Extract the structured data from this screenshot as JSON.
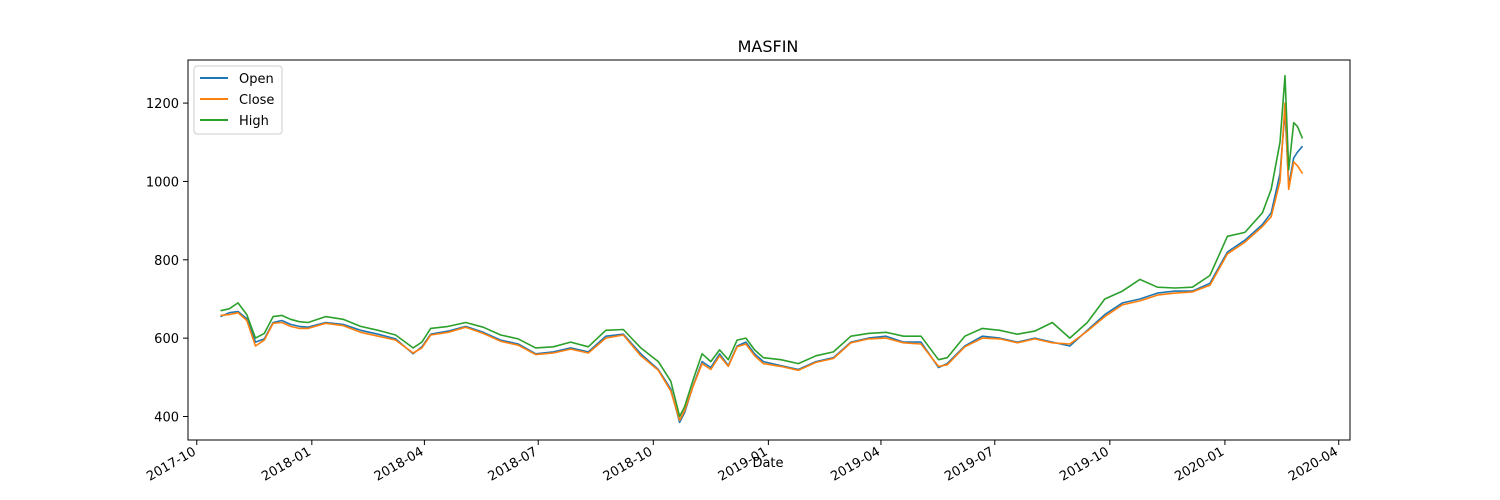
{
  "chart_data": {
    "type": "line",
    "title": "MASFIN",
    "xlabel": "Date",
    "ylabel": "",
    "x_axis": "date",
    "xlim": [
      "2017-09-24",
      "2020-04-10"
    ],
    "ylim": [
      340,
      1310
    ],
    "x_ticks": [
      "2017-10",
      "2018-01",
      "2018-04",
      "2018-07",
      "2018-10",
      "2019-01",
      "2019-04",
      "2019-07",
      "2019-10",
      "2020-01",
      "2020-04"
    ],
    "y_ticks": [
      400,
      600,
      800,
      1000,
      1200
    ],
    "grid": false,
    "legend_position": "top-left",
    "colors": {
      "Open": "#1f77b4",
      "Close": "#ff7f0e",
      "High": "#2ca02c"
    },
    "x": [
      "2017-10-20",
      "2017-10-27",
      "2017-11-03",
      "2017-11-10",
      "2017-11-17",
      "2017-11-24",
      "2017-12-01",
      "2017-12-08",
      "2017-12-15",
      "2017-12-22",
      "2017-12-29",
      "2018-01-12",
      "2018-01-26",
      "2018-02-09",
      "2018-02-23",
      "2018-03-09",
      "2018-03-23",
      "2018-03-30",
      "2018-04-06",
      "2018-04-20",
      "2018-05-04",
      "2018-05-18",
      "2018-06-01",
      "2018-06-15",
      "2018-06-29",
      "2018-07-13",
      "2018-07-27",
      "2018-08-10",
      "2018-08-24",
      "2018-09-07",
      "2018-09-21",
      "2018-10-05",
      "2018-10-15",
      "2018-10-22",
      "2018-10-26",
      "2018-11-02",
      "2018-11-09",
      "2018-11-16",
      "2018-11-23",
      "2018-11-30",
      "2018-12-07",
      "2018-12-14",
      "2018-12-21",
      "2018-12-28",
      "2019-01-11",
      "2019-01-25",
      "2019-02-08",
      "2019-02-22",
      "2019-03-08",
      "2019-03-22",
      "2019-04-05",
      "2019-04-19",
      "2019-05-03",
      "2019-05-17",
      "2019-05-24",
      "2019-06-07",
      "2019-06-21",
      "2019-07-05",
      "2019-07-19",
      "2019-08-02",
      "2019-08-16",
      "2019-08-30",
      "2019-09-13",
      "2019-09-27",
      "2019-10-11",
      "2019-10-25",
      "2019-11-08",
      "2019-11-22",
      "2019-12-06",
      "2019-12-20",
      "2020-01-03",
      "2020-01-17",
      "2020-01-31",
      "2020-02-07",
      "2020-02-14",
      "2020-02-18",
      "2020-02-21",
      "2020-02-25",
      "2020-02-28",
      "2020-03-03"
    ],
    "series": [
      {
        "name": "Open",
        "values": [
          655,
          665,
          668,
          650,
          590,
          598,
          640,
          645,
          635,
          630,
          628,
          640,
          635,
          620,
          610,
          598,
          560,
          578,
          610,
          618,
          630,
          615,
          595,
          585,
          560,
          565,
          575,
          565,
          605,
          610,
          560,
          520,
          470,
          385,
          410,
          480,
          540,
          525,
          560,
          530,
          580,
          590,
          560,
          540,
          530,
          520,
          540,
          550,
          590,
          600,
          605,
          590,
          590,
          525,
          535,
          580,
          605,
          600,
          590,
          600,
          590,
          580,
          620,
          660,
          690,
          700,
          715,
          720,
          720,
          740,
          820,
          850,
          890,
          920,
          1020,
          1180,
          990,
          1060,
          1075,
          1090
        ],
        "x": null
      },
      {
        "name": "Close",
        "values": [
          658,
          660,
          665,
          645,
          580,
          595,
          638,
          640,
          630,
          625,
          625,
          638,
          632,
          615,
          605,
          595,
          562,
          575,
          608,
          615,
          628,
          612,
          592,
          582,
          558,
          562,
          572,
          562,
          600,
          608,
          555,
          518,
          465,
          390,
          415,
          478,
          535,
          520,
          555,
          528,
          578,
          585,
          555,
          535,
          528,
          518,
          538,
          548,
          588,
          598,
          600,
          588,
          585,
          528,
          532,
          578,
          600,
          598,
          588,
          598,
          588,
          585,
          618,
          655,
          685,
          695,
          710,
          715,
          718,
          735,
          815,
          845,
          885,
          910,
          1000,
          1200,
          980,
          1050,
          1040,
          1020
        ],
        "x": null
      },
      {
        "name": "High",
        "values": [
          670,
          675,
          690,
          660,
          600,
          612,
          655,
          658,
          648,
          642,
          640,
          655,
          648,
          630,
          620,
          608,
          575,
          590,
          625,
          630,
          640,
          628,
          608,
          598,
          575,
          578,
          590,
          578,
          620,
          622,
          575,
          540,
          490,
          400,
          425,
          495,
          560,
          540,
          570,
          545,
          595,
          600,
          570,
          550,
          545,
          535,
          555,
          565,
          605,
          612,
          615,
          605,
          605,
          545,
          550,
          605,
          625,
          620,
          610,
          618,
          640,
          600,
          640,
          700,
          720,
          750,
          730,
          728,
          730,
          760,
          860,
          870,
          920,
          980,
          1100,
          1270,
          1030,
          1150,
          1140,
          1110
        ]
      }
    ]
  }
}
